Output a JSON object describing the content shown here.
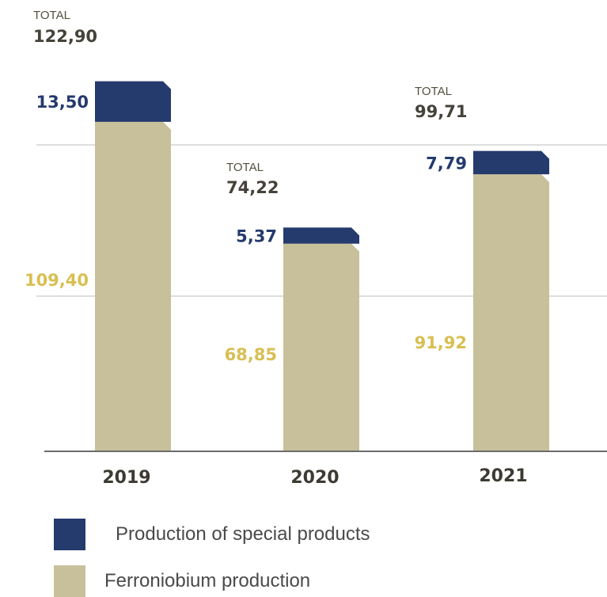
{
  "chart_data": {
    "type": "bar",
    "stacked": true,
    "categories": [
      "2019",
      "2020",
      "2021"
    ],
    "series": [
      {
        "name": "Ferroniobium production",
        "values": [
          109.4,
          68.85,
          91.92
        ],
        "labels": [
          "109,40",
          "68,85",
          "91,92"
        ]
      },
      {
        "name": "Production of special products",
        "values": [
          13.5,
          5.37,
          7.79
        ],
        "labels": [
          "13,50",
          "5,37",
          "7,79"
        ]
      }
    ],
    "totals": {
      "label": "TOTAL",
      "values": [
        122.9,
        74.22,
        99.71
      ],
      "labels": [
        "122,90",
        "74,22",
        "99,71"
      ]
    },
    "grid": true,
    "legend_position": "bottom-left"
  },
  "colors": {
    "ferroniobium": "#c7c09a",
    "special": "#253a6d",
    "ferroniobium_label": "#d8bf52",
    "special_label": "#253a6d",
    "grid": "#d4d4d4",
    "axis": "#6b6b6b"
  }
}
